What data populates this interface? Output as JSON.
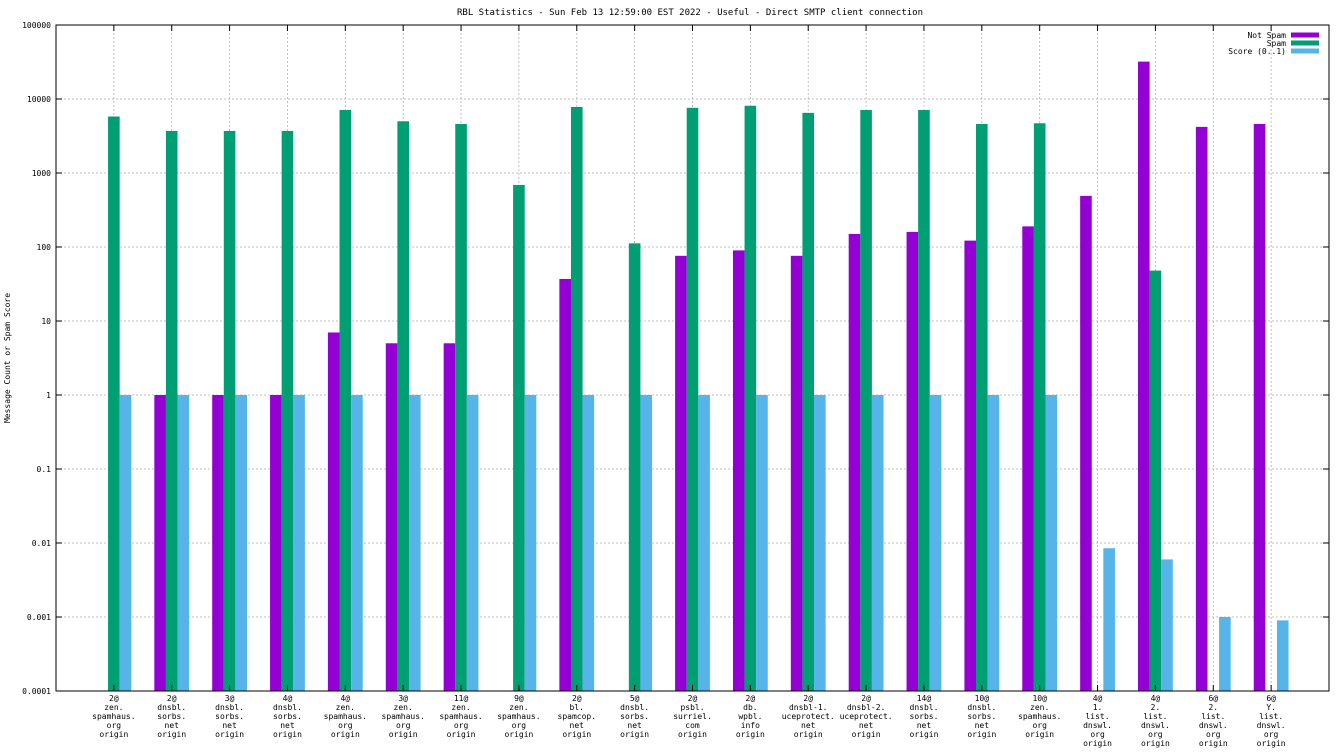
{
  "chart_data": {
    "type": "bar",
    "scale": "log",
    "title": "RBL Statistics - Sun Feb 13 12:59:00 EST 2022 - Useful - Direct SMTP client connection",
    "xlabel": "",
    "ylabel": "Message Count or Spam Score",
    "ylim": [
      0.0001,
      100000
    ],
    "yticks": [
      "0.0001",
      "0.001",
      "0.01",
      "0.1",
      "1",
      "10",
      "100",
      "1000",
      "10000",
      "100000"
    ],
    "grid": true,
    "legend_position": "top-right",
    "categories": [
      [
        "2@",
        "zen.",
        "spamhaus.",
        "org",
        "origin"
      ],
      [
        "2@",
        "dnsbl.",
        "sorbs.",
        "net",
        "origin"
      ],
      [
        "3@",
        "dnsbl.",
        "sorbs.",
        "net",
        "origin"
      ],
      [
        "4@",
        "dnsbl.",
        "sorbs.",
        "net",
        "origin"
      ],
      [
        "4@",
        "zen.",
        "spamhaus.",
        "org",
        "origin"
      ],
      [
        "3@",
        "zen.",
        "spamhaus.",
        "org",
        "origin"
      ],
      [
        "11@",
        "zen.",
        "spamhaus.",
        "org",
        "origin"
      ],
      [
        "9@",
        "zen.",
        "spamhaus.",
        "org",
        "origin"
      ],
      [
        "2@",
        "bl.",
        "spamcop.",
        "net",
        "origin"
      ],
      [
        "5@",
        "dnsbl.",
        "sorbs.",
        "net",
        "origin"
      ],
      [
        "2@",
        "psbl.",
        "surriel.",
        "com",
        "origin"
      ],
      [
        "2@",
        "db.",
        "wpbl.",
        "info",
        "origin"
      ],
      [
        "2@",
        "dnsbl-1.",
        "uceprotect.",
        "net",
        "origin"
      ],
      [
        "2@",
        "dnsbl-2.",
        "uceprotect.",
        "net",
        "origin"
      ],
      [
        "14@",
        "dnsbl.",
        "sorbs.",
        "net",
        "origin"
      ],
      [
        "10@",
        "dnsbl.",
        "sorbs.",
        "net",
        "origin"
      ],
      [
        "10@",
        "zen.",
        "spamhaus.",
        "org",
        "origin"
      ],
      [
        "4@",
        "1.",
        "list.",
        "dnswl.",
        "org",
        "origin"
      ],
      [
        "4@",
        "2.",
        "list.",
        "dnswl.",
        "org",
        "origin"
      ],
      [
        "6@",
        "2.",
        "list.",
        "dnswl.",
        "org",
        "origin"
      ],
      [
        "6@",
        "Y.",
        "list.",
        "dnswl.",
        "org",
        "origin"
      ]
    ],
    "series": [
      {
        "name": "Not Spam",
        "color": "#9400d3",
        "values": [
          0,
          1,
          1,
          1,
          7,
          5,
          5,
          0,
          37,
          0,
          76,
          90,
          76,
          150,
          160,
          122,
          190,
          490,
          32000,
          4200,
          4600
        ]
      },
      {
        "name": "Spam",
        "color": "#009e73",
        "values": [
          5800,
          3700,
          3700,
          3700,
          7100,
          5000,
          4600,
          690,
          7800,
          112,
          7600,
          8100,
          6500,
          7100,
          7100,
          4600,
          4700,
          0,
          48,
          0,
          0
        ]
      },
      {
        "name": "Score (0..1)",
        "color": "#56b4e9",
        "values": [
          1,
          1,
          1,
          1,
          1,
          1,
          1,
          1,
          1,
          1,
          1,
          1,
          1,
          1,
          1,
          1,
          1,
          0.0085,
          0.006,
          0.001,
          0.0009
        ]
      }
    ]
  }
}
